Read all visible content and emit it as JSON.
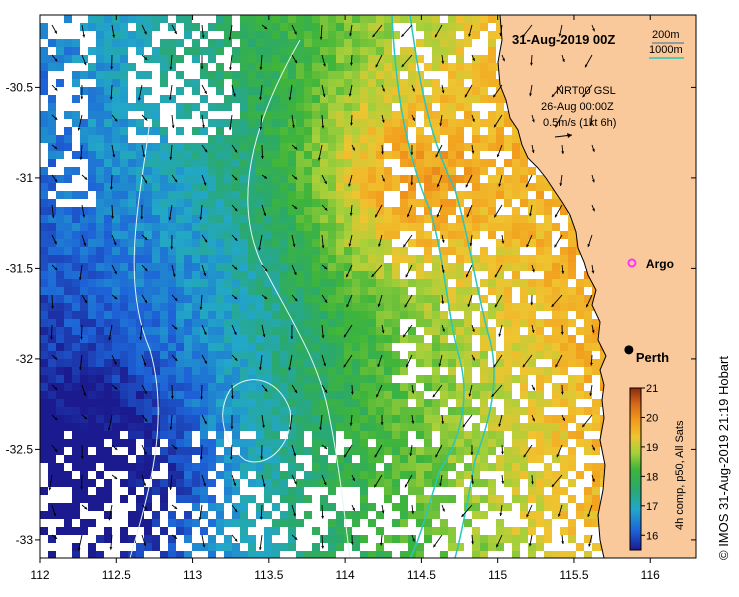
{
  "title": "31-Aug-2019 00Z",
  "depth_legend": {
    "label_200": "200m",
    "label_1000": "1000m",
    "color_200": "#2f6f8f",
    "color_1000": "#27c7c0"
  },
  "current_legend": {
    "line1": "NRT00 GSL",
    "line2": "26-Aug 00:00Z",
    "line3": "0.5m/s (1kt 6h)"
  },
  "markers": {
    "argo": {
      "label": "Argo",
      "lon": 115.88,
      "lat": -31.47,
      "color": "#ff33ff"
    },
    "perth": {
      "label": "Perth",
      "lon": 115.86,
      "lat": -31.95
    }
  },
  "colorbar": {
    "title": "4h comp, p50, All Sats",
    "min": 15.5,
    "max": 21,
    "ticks": [
      "16",
      "17",
      "18",
      "19",
      "20",
      "21"
    ],
    "tick_values": [
      16,
      17,
      18,
      19,
      20,
      21
    ]
  },
  "axes": {
    "x_ticks": [
      "112",
      "112.5",
      "113",
      "113.5",
      "114",
      "114.5",
      "115",
      "115.5",
      "116"
    ],
    "x_values": [
      112,
      112.5,
      113,
      113.5,
      114,
      114.5,
      115,
      115.5,
      116
    ],
    "y_ticks": [
      "-30.5",
      "-31",
      "-31.5",
      "-32",
      "-32.5",
      "-33"
    ],
    "y_values": [
      -30.5,
      -31,
      -31.5,
      -32,
      -32.5,
      -33
    ],
    "lon_range": [
      112,
      116.3
    ],
    "lat_range": [
      -33.1,
      -30.1
    ]
  },
  "credit": "© IMOS 31-Aug-2019 21:19 Hobart",
  "colors": {
    "land": "#f9c89b",
    "frame": "#000000",
    "cloud": "#ffffff"
  }
}
